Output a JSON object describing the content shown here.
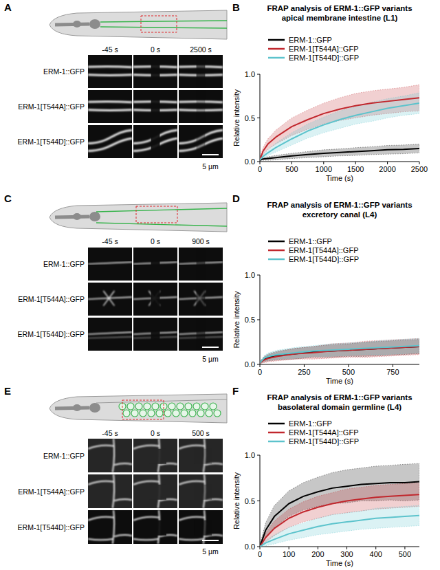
{
  "chart_data": [
    {
      "type": "line",
      "annotations": [
        "B"
      ],
      "title": "FRAP analysis of ERM-1::GFP variants",
      "subtitle": "apical membrane intestine (L1)",
      "x_label": "Time (s)",
      "y_label": "Relative intensity",
      "x": [
        0,
        50,
        125,
        250,
        500,
        750,
        1000,
        1250,
        1500,
        1750,
        2000,
        2250,
        2500
      ],
      "xlim": [
        0,
        2500
      ],
      "xticks": [
        0,
        500,
        1000,
        1500,
        2000,
        2500
      ],
      "ylim": [
        0,
        1
      ],
      "yticks": [
        {
          "value": 0,
          "label": "0.0"
        },
        0.5,
        {
          "value": 1,
          "label": "1.0"
        }
      ],
      "legend": "upper left",
      "grid": false,
      "series": [
        {
          "name": "ERM-1::GFP",
          "color": "#000000",
          "values": [
            0.02,
            0.03,
            0.035,
            0.045,
            0.065,
            0.08,
            0.095,
            0.105,
            0.115,
            0.125,
            0.135,
            0.14,
            0.15
          ],
          "error": [
            0.01,
            0.015,
            0.02,
            0.025,
            0.03,
            0.035,
            0.04,
            0.04,
            0.045,
            0.045,
            0.05,
            0.05,
            0.05
          ]
        },
        {
          "name": "ERM-1[T544A]::GFP",
          "color": "#c1272d",
          "values": [
            0.02,
            0.12,
            0.2,
            0.28,
            0.4,
            0.48,
            0.55,
            0.6,
            0.64,
            0.67,
            0.69,
            0.71,
            0.73
          ],
          "error": [
            0.01,
            0.04,
            0.06,
            0.08,
            0.1,
            0.11,
            0.12,
            0.13,
            0.14,
            0.14,
            0.14,
            0.14,
            0.15
          ]
        },
        {
          "name": "ERM-1[T544D]::GFP",
          "color": "#5cc3cc",
          "values": [
            0.02,
            0.06,
            0.1,
            0.16,
            0.26,
            0.35,
            0.42,
            0.48,
            0.53,
            0.57,
            0.61,
            0.64,
            0.67
          ],
          "error": [
            0.01,
            0.02,
            0.03,
            0.05,
            0.07,
            0.08,
            0.09,
            0.1,
            0.1,
            0.11,
            0.11,
            0.11,
            0.12
          ]
        }
      ]
    },
    {
      "type": "line",
      "annotations": [
        "D"
      ],
      "title": "FRAP analysis of ERM-1::GFP variants",
      "subtitle": "excretory canal (L4)",
      "x_label": "Time (s)",
      "y_label": "Relative intensity",
      "x": [
        0,
        25,
        50,
        100,
        200,
        300,
        400,
        500,
        600,
        700,
        800,
        900
      ],
      "xlim": [
        0,
        900
      ],
      "xticks": [
        0,
        250,
        500,
        750
      ],
      "ylim": [
        0,
        1
      ],
      "yticks": [
        {
          "value": 0,
          "label": "0.0"
        },
        0.5,
        {
          "value": 1,
          "label": "1.0"
        }
      ],
      "legend": "upper left",
      "grid": false,
      "series": [
        {
          "name": "ERM-1::GFP",
          "color": "#000000",
          "values": [
            0.02,
            0.06,
            0.08,
            0.1,
            0.12,
            0.14,
            0.15,
            0.16,
            0.17,
            0.18,
            0.19,
            0.2
          ],
          "error": [
            0.01,
            0.03,
            0.04,
            0.05,
            0.06,
            0.06,
            0.07,
            0.07,
            0.08,
            0.08,
            0.08,
            0.08
          ]
        },
        {
          "name": "ERM-1[T544A]::GFP",
          "color": "#c1272d",
          "values": [
            0.02,
            0.05,
            0.07,
            0.09,
            0.12,
            0.13,
            0.15,
            0.16,
            0.17,
            0.18,
            0.19,
            0.2
          ],
          "error": [
            0.01,
            0.03,
            0.04,
            0.05,
            0.06,
            0.07,
            0.08,
            0.08,
            0.09,
            0.09,
            0.09,
            0.09
          ]
        },
        {
          "name": "ERM-1[T544D]::GFP",
          "color": "#5cc3cc",
          "values": [
            0.02,
            0.07,
            0.09,
            0.11,
            0.13,
            0.15,
            0.16,
            0.17,
            0.18,
            0.19,
            0.2,
            0.21
          ],
          "error": [
            0.01,
            0.03,
            0.04,
            0.05,
            0.06,
            0.06,
            0.07,
            0.07,
            0.07,
            0.08,
            0.08,
            0.08
          ]
        }
      ]
    },
    {
      "type": "line",
      "annotations": [
        "F"
      ],
      "title": "FRAP analysis of ERM-1::GFP variants",
      "subtitle": "basolateral domain germline (L4)",
      "x_label": "Time (s)",
      "y_label": "Relative intensity",
      "x": [
        0,
        20,
        50,
        100,
        150,
        200,
        250,
        300,
        350,
        400,
        450,
        500,
        550
      ],
      "xlim": [
        0,
        550
      ],
      "xticks": [
        0,
        100,
        200,
        300,
        400,
        500
      ],
      "ylim": [
        0,
        1
      ],
      "yticks": [
        {
          "value": 0,
          "label": "0.0"
        },
        0.5,
        {
          "value": 1,
          "label": "1.0"
        }
      ],
      "legend": "upper left",
      "grid": false,
      "series": [
        {
          "name": "ERM-1::GFP",
          "color": "#000000",
          "values": [
            0,
            0.18,
            0.33,
            0.47,
            0.55,
            0.6,
            0.64,
            0.66,
            0.68,
            0.69,
            0.7,
            0.7,
            0.71
          ],
          "error": [
            0.02,
            0.08,
            0.12,
            0.14,
            0.15,
            0.16,
            0.17,
            0.18,
            0.18,
            0.19,
            0.19,
            0.2,
            0.2
          ]
        },
        {
          "name": "ERM-1[T544A]::GFP",
          "color": "#c1272d",
          "values": [
            0,
            0.1,
            0.2,
            0.31,
            0.38,
            0.43,
            0.47,
            0.5,
            0.52,
            0.54,
            0.55,
            0.56,
            0.57
          ],
          "error": [
            0.02,
            0.05,
            0.08,
            0.1,
            0.11,
            0.12,
            0.12,
            0.13,
            0.13,
            0.13,
            0.13,
            0.13,
            0.13
          ]
        },
        {
          "name": "ERM-1[T544D]::GFP",
          "color": "#5cc3cc",
          "values": [
            0,
            0.04,
            0.08,
            0.14,
            0.18,
            0.22,
            0.25,
            0.27,
            0.29,
            0.31,
            0.32,
            0.33,
            0.34
          ],
          "error": [
            0.01,
            0.03,
            0.05,
            0.07,
            0.08,
            0.09,
            0.1,
            0.1,
            0.1,
            0.11,
            0.11,
            0.11,
            0.11
          ]
        }
      ]
    }
  ],
  "image_panels": [
    {
      "label": "A",
      "times": [
        "-45 s",
        "0 s",
        "2500 s"
      ],
      "rows": [
        "ERM-1::GFP",
        "ERM-1[T544A]::GFP",
        "ERM-1[T544D]::GFP"
      ],
      "scale_bar": "5 µm"
    },
    {
      "label": "C",
      "times": [
        "-45 s",
        "0 s",
        "900 s"
      ],
      "rows": [
        "ERM-1::GFP",
        "ERM-1[T544A]::GFP",
        "ERM-1[T544D]::GFP"
      ],
      "scale_bar": "5 µm"
    },
    {
      "label": "E",
      "times": [
        "-45 s",
        "0 s",
        "500 s"
      ],
      "rows": [
        "ERM-1::GFP",
        "ERM-1[T544A]::GFP",
        "ERM-1[T544D]::GFP"
      ],
      "scale_bar": "5 µm"
    }
  ]
}
